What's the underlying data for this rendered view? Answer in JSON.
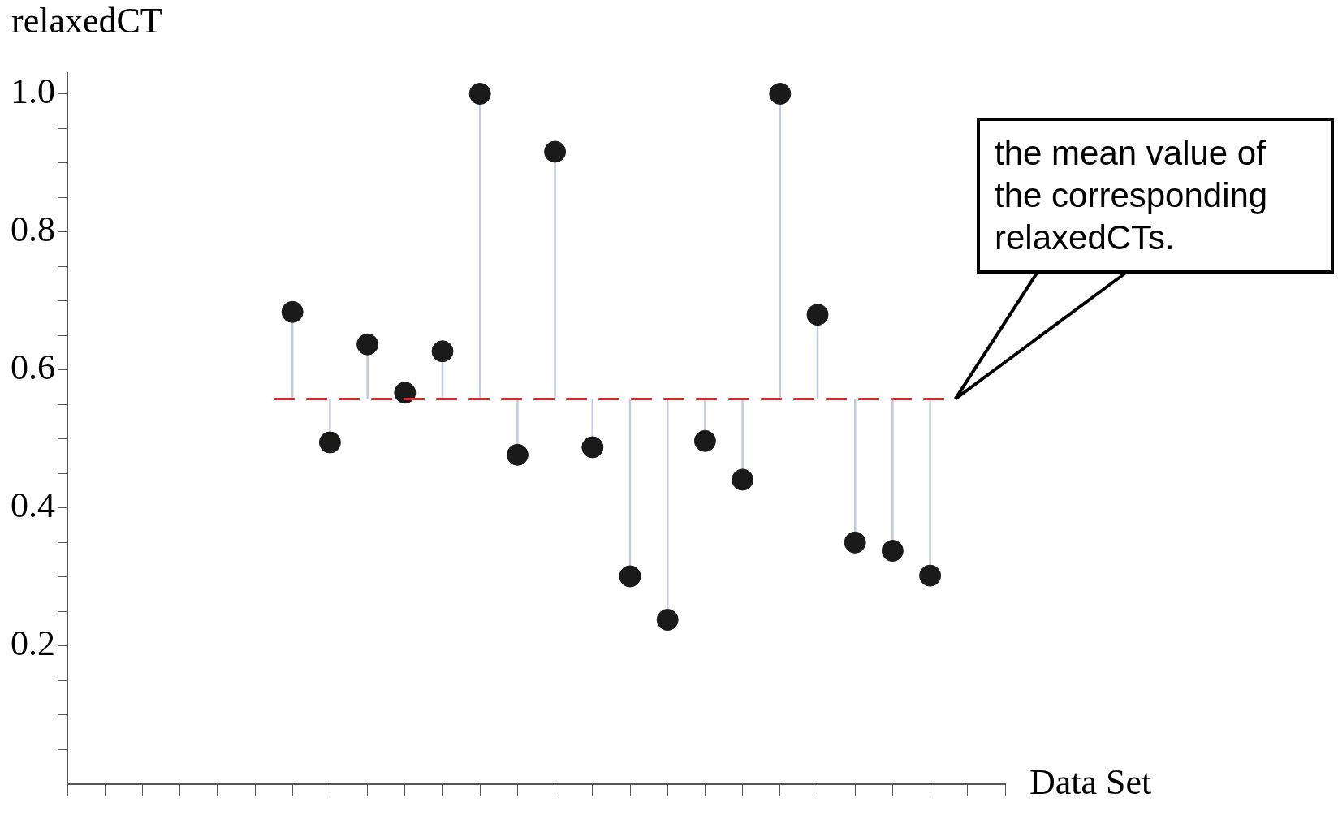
{
  "chart_data": {
    "type": "scatter",
    "errors": [
      null,
      null,
      null,
      null,
      null,
      null,
      [
        0.558,
        0.684
      ],
      [
        0.495,
        0.558
      ],
      [
        0.558,
        0.637
      ],
      null,
      [
        0.558,
        0.627
      ],
      [
        0.558,
        1.0
      ],
      [
        0.477,
        0.558
      ],
      [
        0.558,
        0.916
      ],
      [
        0.488,
        0.558
      ],
      [
        0.301,
        0.558
      ],
      [
        0.238,
        0.558
      ],
      [
        0.497,
        0.558
      ],
      [
        0.441,
        0.558
      ],
      [
        0.558,
        1.0
      ],
      [
        0.558,
        0.68
      ],
      [
        0.35,
        0.558
      ],
      [
        0.338,
        0.558
      ],
      [
        0.302,
        0.558
      ],
      null,
      null
    ],
    "ylabel": "relaxedCT",
    "xlabel": "Data Set",
    "categories": [
      null,
      null,
      null,
      null,
      null,
      null,
      null,
      null,
      null,
      null,
      null,
      null,
      null,
      null,
      null,
      null,
      null,
      null,
      null,
      null,
      null,
      null,
      null,
      null,
      null,
      null
    ],
    "values": [
      null,
      null,
      null,
      null,
      null,
      null,
      0.684,
      0.495,
      0.637,
      0.567,
      0.627,
      1.0,
      0.477,
      0.916,
      0.488,
      0.301,
      0.238,
      0.497,
      0.441,
      1.0,
      0.68,
      0.35,
      0.338,
      0.302,
      null,
      null
    ],
    "color": "#1a1a1a",
    "marker": "circle",
    "tick_labels": "y",
    "grid": false,
    "ylim": [
      0,
      1.03
    ],
    "yticks": [
      {
        "value": 0.05,
        "label": null
      },
      {
        "value": 0.1,
        "label": null
      },
      {
        "value": 0.15,
        "label": null
      },
      0.2,
      {
        "value": 0.25,
        "label": null
      },
      {
        "value": 0.3,
        "label": null
      },
      {
        "value": 0.35,
        "label": null
      },
      0.4,
      {
        "value": 0.45,
        "label": null
      },
      {
        "value": 0.5,
        "label": null
      },
      {
        "value": 0.55,
        "label": null
      },
      0.6,
      {
        "value": 0.65,
        "label": null
      },
      {
        "value": 0.7,
        "label": null
      },
      {
        "value": 0.75,
        "label": null
      },
      0.8,
      {
        "value": 0.85,
        "label": null
      },
      {
        "value": 0.9,
        "label": null
      },
      {
        "value": 0.95,
        "label": null
      },
      {
        "value": 1.0,
        "label": "1.0"
      }
    ],
    "ref_lines": [
      {
        "axis": "y",
        "value": 0.558,
        "color": "#e8262a",
        "line_style": "dashed"
      }
    ],
    "annotations": [
      "the mean value of the corresponding relaxedCTs."
    ]
  }
}
